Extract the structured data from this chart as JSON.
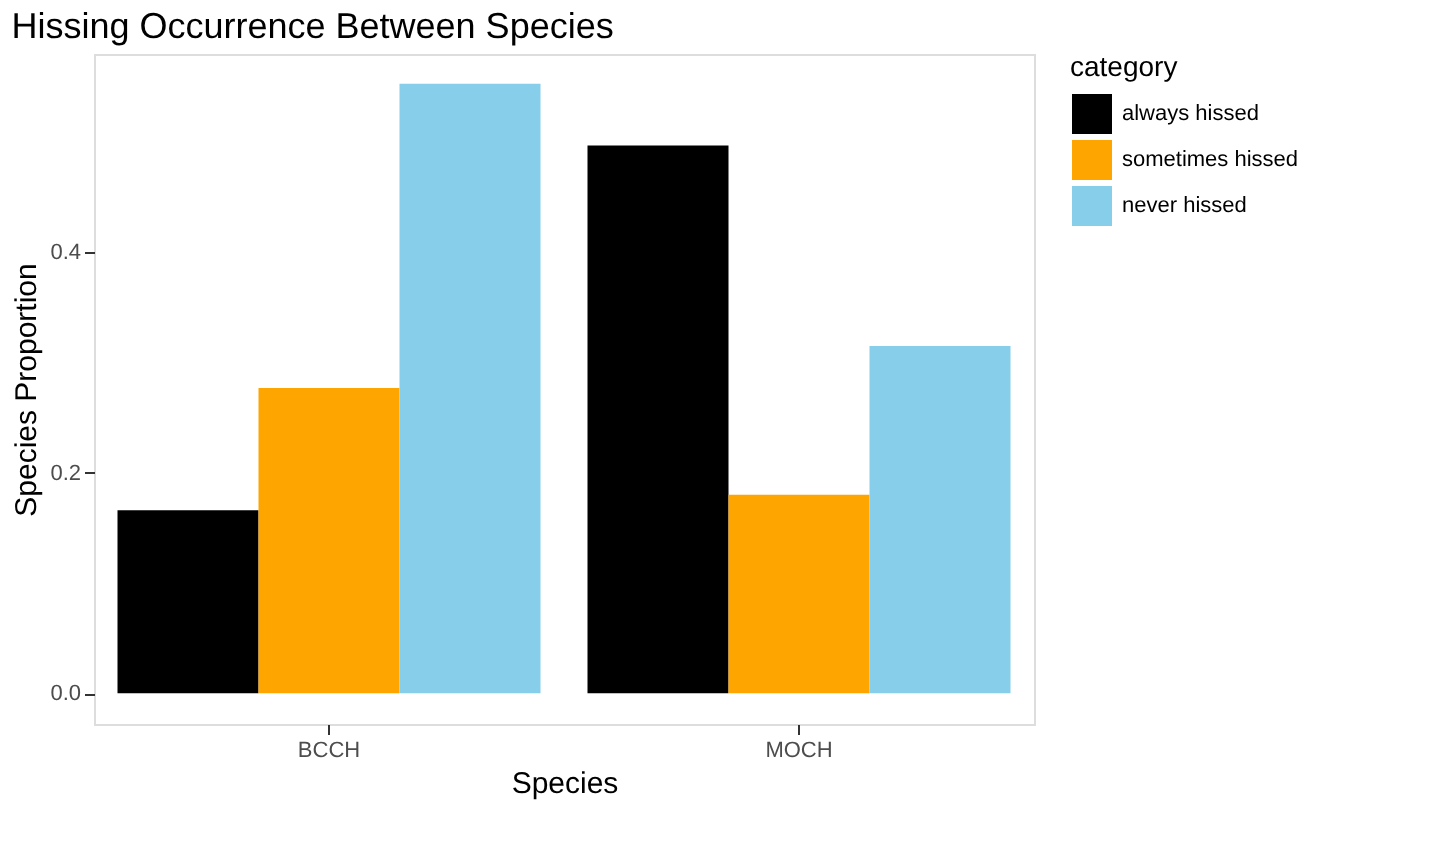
{
  "chart_data": {
    "type": "bar",
    "title": "Hissing Occurrence Between Species",
    "xlabel": "Species",
    "ylabel": "Species Proportion",
    "legend_title": "category",
    "legend": "right",
    "categories": [
      "BCCH",
      "MOCH"
    ],
    "series": [
      {
        "name": "always hissed",
        "color": "#000000",
        "values": [
          0.166,
          0.497
        ]
      },
      {
        "name": "sometimes hissed",
        "color": "#ffa500",
        "values": [
          0.277,
          0.18
        ]
      },
      {
        "name": "never hissed",
        "color": "#87ceeb",
        "values": [
          0.553,
          0.315
        ]
      }
    ],
    "ylim": [
      -0.028,
      0.58
    ],
    "yticks": [
      {
        "value": 0,
        "label": "0.0"
      },
      {
        "value": 0.2,
        "label": "0.2"
      },
      {
        "value": 0.4,
        "label": "0.4"
      }
    ],
    "grid": false
  }
}
